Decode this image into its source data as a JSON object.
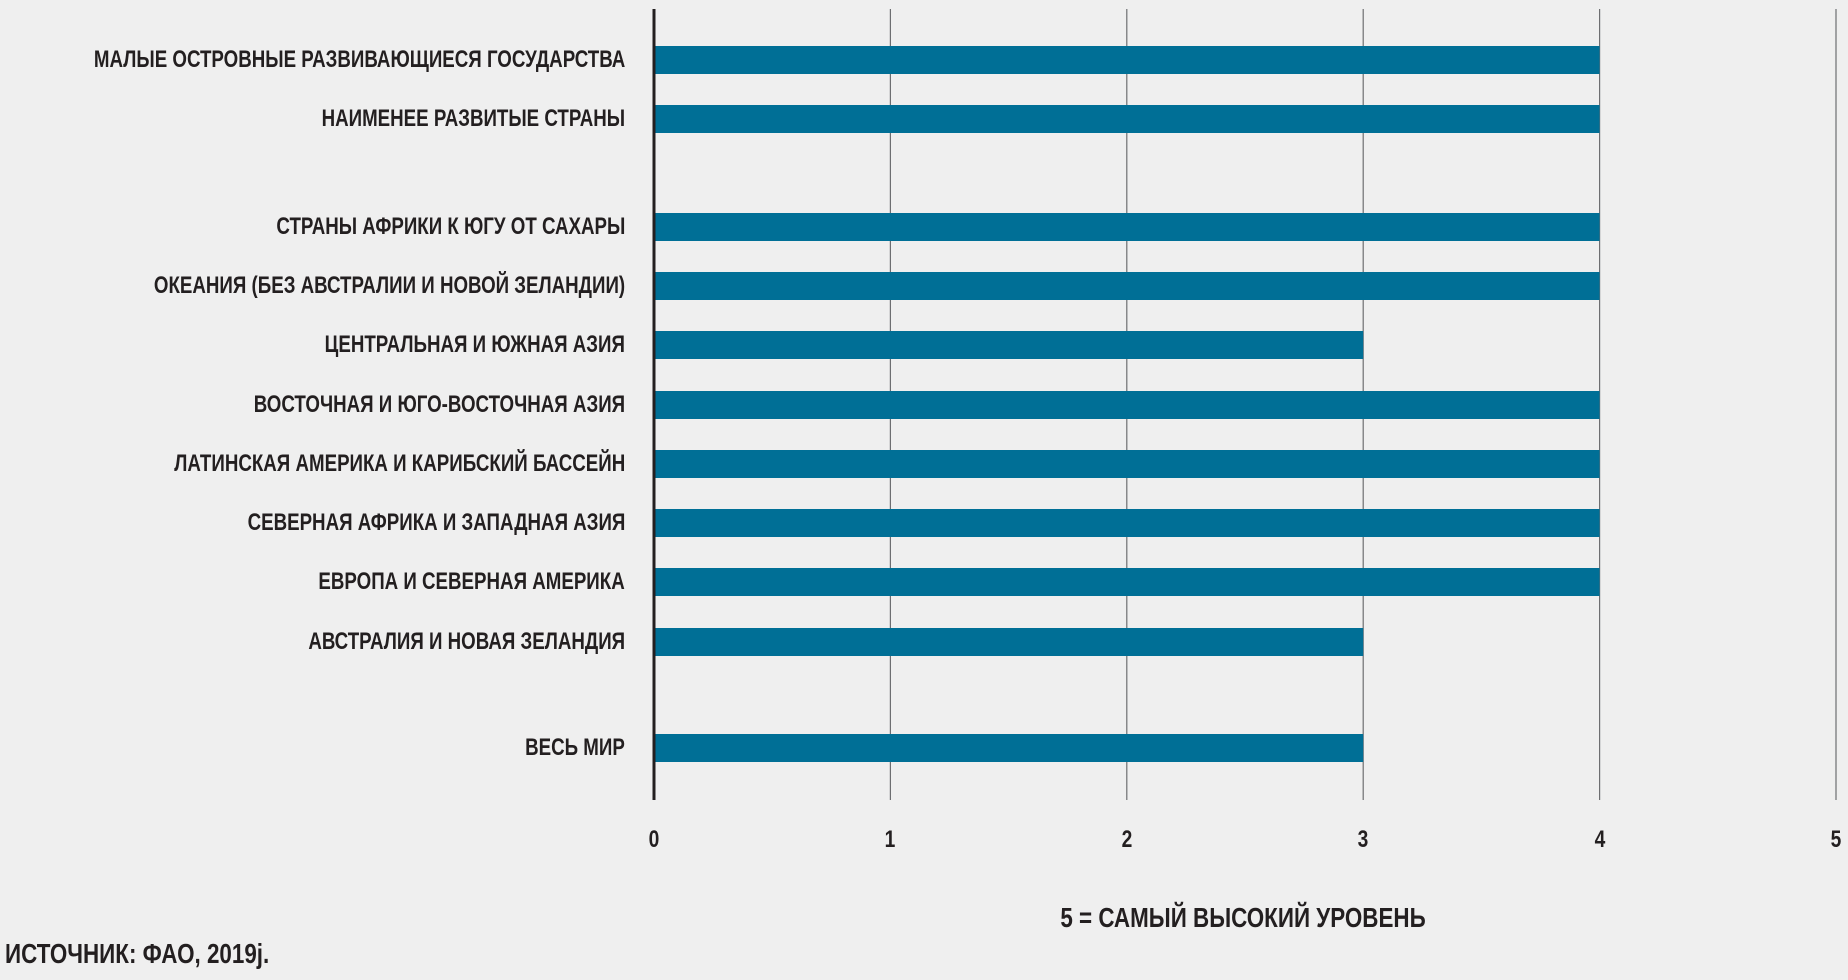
{
  "chart_data": {
    "type": "bar",
    "orientation": "horizontal",
    "categories": [
      "МАЛЫЕ ОСТРОВНЫЕ РАЗВИВАЮЩИЕСЯ ГОСУДАРСТВА",
      "НАИМЕНЕЕ РАЗВИТЫЕ СТРАНЫ",
      "СТРАНЫ АФРИКИ К ЮГУ ОТ САХАРЫ",
      "ОКЕАНИЯ (БЕЗ АВСТРАЛИИ И НОВОЙ ЗЕЛАНДИИ)",
      "ЦЕНТРАЛЬНАЯ И ЮЖНАЯ АЗИЯ",
      "ВОСТОЧНАЯ И ЮГО-ВОСТОЧНАЯ АЗИЯ",
      "ЛАТИНСКАЯ АМЕРИКА И КАРИБСКИЙ БАССЕЙН",
      "СЕВЕРНАЯ АФРИКА И ЗАПАДНАЯ АЗИЯ",
      "ЕВРОПА И СЕВЕРНАЯ АМЕРИКА",
      "АВСТРАЛИЯ И НОВАЯ ЗЕЛАНДИЯ",
      "ВЕСЬ МИР"
    ],
    "values": [
      4,
      4,
      4,
      4,
      3,
      4,
      4,
      4,
      4,
      3,
      3
    ],
    "xlim": [
      0,
      5
    ],
    "xticks": [
      "0",
      "1",
      "2",
      "3",
      "4",
      "5"
    ],
    "xlabel": "5 = САМЫЙ ВЫСОКИЙ УРОВЕНЬ",
    "grid": true,
    "bar_color": "#006f96",
    "source": "ИСТОЧНИК: ФАО, 2019j."
  }
}
